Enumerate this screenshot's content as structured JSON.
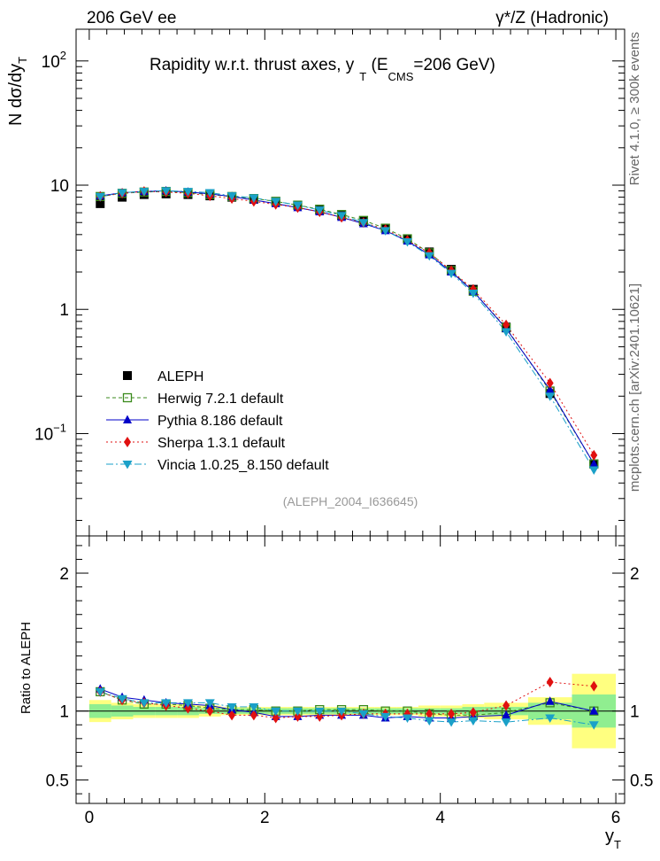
{
  "header": {
    "left": "206 GeV ee",
    "right": "γ*/Z (Hadronic)"
  },
  "side_labels": {
    "rivet": "Rivet 4.1.0, ≥ 300k events",
    "mcplots": "mcplots.cern.ch [arXiv:2401.10621]"
  },
  "watermark": "(ALEPH_2004_I636645)",
  "chart_data": [
    {
      "type": "scatter",
      "name": "main",
      "title": "Rapidity w.r.t. thrust axes, y_T (E_CMS=206 GeV)",
      "title_parts": {
        "main": "Rapidity w.r.t. thrust axes, y",
        "sub1": "T",
        "mid": " (E",
        "sub2": "CMS",
        "end": "=206 GeV)"
      },
      "xlabel": "y_T",
      "ylabel": "N dσ/dy_T",
      "yscale": "log",
      "xlim": [
        -0.15,
        6.1
      ],
      "ylim": [
        0.015,
        180
      ],
      "xticks": [
        0,
        2,
        4,
        6
      ],
      "yticks": [
        {
          "v": 100,
          "label": "10",
          "exp": "2"
        },
        {
          "v": 10,
          "label": "10"
        },
        {
          "v": 1,
          "label": "1"
        },
        {
          "v": 0.1,
          "label": "10",
          "exp": "−1"
        }
      ],
      "x": [
        0.125,
        0.375,
        0.625,
        0.875,
        1.125,
        1.375,
        1.625,
        1.875,
        2.125,
        2.375,
        2.625,
        2.875,
        3.125,
        3.375,
        3.625,
        3.875,
        4.125,
        4.375,
        4.75,
        5.25,
        5.75
      ],
      "series": [
        {
          "name": "ALEPH",
          "style": "data",
          "color": "#000000",
          "values": [
            7.1,
            8.0,
            8.4,
            8.5,
            8.4,
            8.2,
            8.0,
            7.7,
            7.4,
            6.9,
            6.3,
            5.7,
            5.1,
            4.5,
            3.7,
            2.9,
            2.1,
            1.45,
            0.72,
            0.21,
            0.057
          ]
        },
        {
          "name": "Herwig 7.2.1 default",
          "style": "square-open",
          "color": "#3a8a1c",
          "dash": "4,3",
          "values": [
            8.1,
            8.6,
            8.8,
            8.9,
            8.7,
            8.4,
            8.1,
            7.8,
            7.4,
            6.9,
            6.4,
            5.8,
            5.2,
            4.5,
            3.7,
            2.85,
            2.05,
            1.4,
            0.71,
            0.22,
            0.057
          ]
        },
        {
          "name": "Pythia 8.186 default",
          "style": "triangle",
          "color": "#0000c8",
          "dash": "",
          "values": [
            8.2,
            8.7,
            8.9,
            9.0,
            8.8,
            8.5,
            8.1,
            7.6,
            7.1,
            6.6,
            6.1,
            5.5,
            4.9,
            4.3,
            3.55,
            2.75,
            2.0,
            1.4,
            0.7,
            0.225,
            0.057
          ]
        },
        {
          "name": "Sherpa 1.3.1 default",
          "style": "diamond",
          "color": "#e01010",
          "dash": "2,3",
          "values": [
            8.1,
            8.6,
            8.9,
            8.8,
            8.6,
            8.2,
            7.8,
            7.4,
            7.0,
            6.6,
            6.1,
            5.5,
            5.0,
            4.4,
            3.6,
            2.85,
            2.05,
            1.45,
            0.75,
            0.255,
            0.067
          ]
        },
        {
          "name": "Vincia 1.0.25_8.150 default",
          "style": "triangle-down",
          "color": "#1aa0c8",
          "dash": "8,3,2,3",
          "values": [
            8.1,
            8.7,
            8.9,
            9.0,
            8.9,
            8.7,
            8.2,
            7.9,
            7.4,
            6.9,
            6.3,
            5.7,
            5.0,
            4.3,
            3.5,
            2.7,
            1.95,
            1.35,
            0.66,
            0.2,
            0.051
          ]
        }
      ],
      "legend": {
        "placement": "lower-left"
      }
    },
    {
      "type": "scatter",
      "name": "ratio",
      "ylabel": "Ratio to ALEPH",
      "xlabel": "y_T",
      "xlim": [
        -0.15,
        6.1
      ],
      "ylim": [
        0.33,
        2.27
      ],
      "xticks": [
        0,
        2,
        4,
        6
      ],
      "yticks": [
        {
          "v": 0.5,
          "label": "0.5"
        },
        {
          "v": 1,
          "label": "1"
        },
        {
          "v": 2,
          "label": "2"
        }
      ],
      "bands": [
        {
          "x0": 0.0,
          "x1": 0.25,
          "inner": 0.05,
          "outer": 0.08
        },
        {
          "x0": 0.25,
          "x1": 0.5,
          "inner": 0.04,
          "outer": 0.06
        },
        {
          "x0": 0.5,
          "x1": 0.75,
          "inner": 0.03,
          "outer": 0.05
        },
        {
          "x0": 0.75,
          "x1": 1.0,
          "inner": 0.03,
          "outer": 0.05
        },
        {
          "x0": 1.0,
          "x1": 1.25,
          "inner": 0.03,
          "outer": 0.05
        },
        {
          "x0": 1.25,
          "x1": 1.5,
          "inner": 0.02,
          "outer": 0.04
        },
        {
          "x0": 1.5,
          "x1": 1.75,
          "inner": 0.02,
          "outer": 0.03
        },
        {
          "x0": 1.75,
          "x1": 2.0,
          "inner": 0.02,
          "outer": 0.03
        },
        {
          "x0": 2.0,
          "x1": 2.25,
          "inner": 0.02,
          "outer": 0.03
        },
        {
          "x0": 2.25,
          "x1": 2.5,
          "inner": 0.02,
          "outer": 0.03
        },
        {
          "x0": 2.5,
          "x1": 2.75,
          "inner": 0.02,
          "outer": 0.03
        },
        {
          "x0": 2.75,
          "x1": 3.0,
          "inner": 0.02,
          "outer": 0.03
        },
        {
          "x0": 3.0,
          "x1": 3.25,
          "inner": 0.02,
          "outer": 0.03
        },
        {
          "x0": 3.25,
          "x1": 3.5,
          "inner": 0.02,
          "outer": 0.03
        },
        {
          "x0": 3.5,
          "x1": 3.75,
          "inner": 0.02,
          "outer": 0.03
        },
        {
          "x0": 3.75,
          "x1": 4.0,
          "inner": 0.02,
          "outer": 0.04
        },
        {
          "x0": 4.0,
          "x1": 4.25,
          "inner": 0.02,
          "outer": 0.04
        },
        {
          "x0": 4.25,
          "x1": 4.5,
          "inner": 0.03,
          "outer": 0.05
        },
        {
          "x0": 4.5,
          "x1": 5.0,
          "inner": 0.03,
          "outer": 0.06
        },
        {
          "x0": 5.0,
          "x1": 5.5,
          "inner": 0.06,
          "outer": 0.1
        },
        {
          "x0": 5.5,
          "x1": 6.0,
          "inner": 0.12,
          "outer": 0.27
        }
      ],
      "x": [
        0.125,
        0.375,
        0.625,
        0.875,
        1.125,
        1.375,
        1.625,
        1.875,
        2.125,
        2.375,
        2.625,
        2.875,
        3.125,
        3.375,
        3.625,
        3.875,
        4.125,
        4.375,
        4.75,
        5.25,
        5.75
      ],
      "series": [
        {
          "name": "ALEPH",
          "style": "data",
          "color": "#000000",
          "values": [
            1,
            1,
            1,
            1,
            1,
            1,
            1,
            1,
            1,
            1,
            1,
            1,
            1,
            1,
            1,
            1,
            1,
            1,
            1,
            1,
            1
          ]
        },
        {
          "name": "Herwig 7.2.1 default",
          "style": "square-open",
          "color": "#3a8a1c",
          "dash": "4,3",
          "values": [
            1.14,
            1.08,
            1.05,
            1.05,
            1.04,
            1.02,
            1.01,
            1.01,
            1.0,
            1.0,
            1.01,
            1.01,
            1.01,
            1.0,
            1.0,
            0.98,
            0.97,
            0.97,
            0.99,
            1.06,
            1.0
          ]
        },
        {
          "name": "Pythia 8.186 default",
          "style": "triangle",
          "color": "#0000c8",
          "dash": "",
          "values": [
            1.16,
            1.1,
            1.08,
            1.06,
            1.05,
            1.04,
            1.01,
            0.99,
            0.96,
            0.96,
            0.97,
            0.97,
            0.97,
            0.95,
            0.96,
            0.95,
            0.95,
            0.96,
            0.97,
            1.07,
            1.0
          ]
        },
        {
          "name": "Sherpa 1.3.1 default",
          "style": "diamond",
          "color": "#e01010",
          "dash": "2,3",
          "values": [
            1.14,
            1.08,
            1.06,
            1.04,
            1.02,
            1.0,
            0.97,
            0.97,
            0.95,
            0.96,
            0.96,
            0.97,
            0.98,
            0.98,
            0.98,
            0.98,
            0.98,
            0.99,
            1.04,
            1.21,
            1.18
          ]
        },
        {
          "name": "Vincia 1.0.25_8.150 default",
          "style": "triangle-down",
          "color": "#1aa0c8",
          "dash": "8,3,2,3",
          "values": [
            1.14,
            1.09,
            1.06,
            1.06,
            1.06,
            1.06,
            1.03,
            1.03,
            1.0,
            1.0,
            1.0,
            1.0,
            0.98,
            0.96,
            0.95,
            0.93,
            0.92,
            0.93,
            0.92,
            0.95,
            0.9
          ]
        }
      ],
      "colors": {
        "band_inner": "#90ee90",
        "band_outer": "#ffff80"
      }
    }
  ]
}
